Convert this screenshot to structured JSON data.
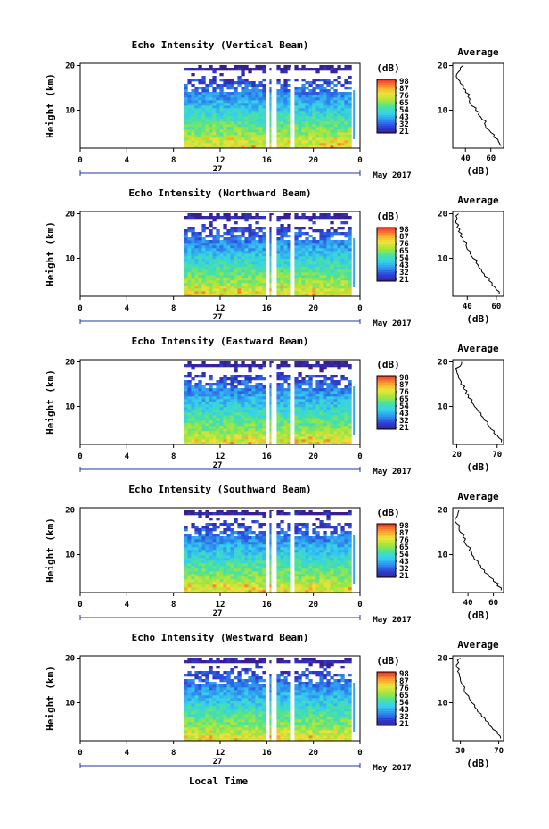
{
  "chart_data": [
    {
      "type": "heatmap",
      "title": "Echo Intensity (Vertical Beam)",
      "ylabel": "Height (km)",
      "xticks": [
        "0",
        "4",
        "8",
        "12",
        "16",
        "20",
        "0"
      ],
      "xrange_hours": [
        0,
        24
      ],
      "yticks": [
        "10",
        "20"
      ],
      "ylim": [
        1.5,
        20.5
      ],
      "date_mark": "27",
      "month_label": "May 2017",
      "colorbar": {
        "unit": "(dB)",
        "labels": [
          "98",
          "87",
          "76",
          "65",
          "54",
          "43",
          "32",
          "21"
        ]
      },
      "data_start_hour": 8.9,
      "data_end_hour": 23.0,
      "gaps_hours": [
        [
          15.9,
          16.1
        ],
        [
          16.4,
          16.6
        ],
        [
          18.0,
          18.2
        ]
      ],
      "profile": {
        "title": "Average",
        "xticks": [
          "40",
          "60"
        ],
        "xlim": [
          30,
          70
        ],
        "xlabel": "(dB)",
        "yticks": [
          "10",
          "20"
        ],
        "heights": [
          2,
          3,
          4,
          5,
          6,
          7,
          8,
          9,
          10,
          11,
          12,
          13,
          14,
          15,
          16,
          17,
          18,
          19,
          20
        ],
        "values": [
          68,
          66,
          62,
          60,
          56,
          55,
          53,
          50,
          48,
          45,
          43,
          42,
          40,
          38,
          36,
          34,
          33,
          36,
          38
        ]
      }
    },
    {
      "type": "heatmap",
      "title": "Echo Intensity (Northward Beam)",
      "ylabel": "Height (km)",
      "xticks": [
        "0",
        "4",
        "8",
        "12",
        "16",
        "20",
        "0"
      ],
      "xrange_hours": [
        0,
        24
      ],
      "yticks": [
        "10",
        "20"
      ],
      "ylim": [
        1.5,
        20.5
      ],
      "date_mark": "27",
      "month_label": "May 2017",
      "colorbar": {
        "unit": "(dB)",
        "labels": [
          "98",
          "87",
          "76",
          "65",
          "54",
          "43",
          "32",
          "21"
        ]
      },
      "data_start_hour": 8.9,
      "data_end_hour": 23.0,
      "gaps_hours": [
        [
          15.9,
          16.1
        ],
        [
          16.4,
          16.6
        ],
        [
          18.0,
          18.2
        ]
      ],
      "profile": {
        "title": "Average",
        "xticks": [
          "40",
          "60"
        ],
        "xlim": [
          30,
          65
        ],
        "xlabel": "(dB)",
        "yticks": [
          "10",
          "20"
        ],
        "heights": [
          2,
          3,
          4,
          5,
          6,
          7,
          8,
          9,
          10,
          11,
          12,
          13,
          14,
          15,
          16,
          17,
          18,
          19,
          20
        ],
        "values": [
          62,
          60,
          57,
          55,
          52,
          50,
          48,
          46,
          44,
          42,
          40,
          39,
          37,
          35,
          34,
          33,
          32,
          33,
          34
        ]
      }
    },
    {
      "type": "heatmap",
      "title": "Echo Intensity (Eastward Beam)",
      "ylabel": "Height (km)",
      "xticks": [
        "0",
        "4",
        "8",
        "12",
        "16",
        "20",
        "0"
      ],
      "xrange_hours": [
        0,
        24
      ],
      "yticks": [
        "10",
        "20"
      ],
      "ylim": [
        1.5,
        20.5
      ],
      "date_mark": "27",
      "month_label": "May 2017",
      "colorbar": {
        "unit": "(dB)",
        "labels": [
          "98",
          "87",
          "76",
          "65",
          "54",
          "43",
          "32",
          "21"
        ]
      },
      "data_start_hour": 8.9,
      "data_end_hour": 23.0,
      "gaps_hours": [
        [
          15.9,
          16.1
        ],
        [
          16.4,
          16.6
        ],
        [
          18.0,
          18.2
        ]
      ],
      "profile": {
        "title": "Average",
        "xticks": [
          "20",
          "70"
        ],
        "xlim": [
          15,
          78
        ],
        "xlabel": "(dB)",
        "yticks": [
          "10",
          "20"
        ],
        "heights": [
          2,
          3,
          4,
          5,
          6,
          7,
          8,
          9,
          10,
          11,
          12,
          13,
          14,
          15,
          16,
          17,
          18,
          19,
          20
        ],
        "values": [
          75,
          72,
          66,
          62,
          58,
          54,
          50,
          46,
          42,
          38,
          34,
          31,
          28,
          25,
          24,
          22,
          20,
          24,
          26
        ]
      }
    },
    {
      "type": "heatmap",
      "title": "Echo Intensity (Southward Beam)",
      "ylabel": "Height (km)",
      "xticks": [
        "0",
        "4",
        "8",
        "12",
        "16",
        "20",
        "0"
      ],
      "xrange_hours": [
        0,
        24
      ],
      "yticks": [
        "10",
        "20"
      ],
      "ylim": [
        1.5,
        20.5
      ],
      "date_mark": "27",
      "month_label": "May 2017",
      "colorbar": {
        "unit": "(dB)",
        "labels": [
          "98",
          "87",
          "76",
          "65",
          "54",
          "43",
          "32",
          "21"
        ]
      },
      "data_start_hour": 8.9,
      "data_end_hour": 23.0,
      "gaps_hours": [
        [
          15.9,
          16.1
        ],
        [
          16.4,
          16.6
        ],
        [
          18.0,
          18.2
        ]
      ],
      "profile": {
        "title": "Average",
        "xticks": [
          "40",
          "60"
        ],
        "xlim": [
          28,
          68
        ],
        "xlabel": "(dB)",
        "yticks": [
          "10",
          "20"
        ],
        "heights": [
          2,
          3,
          4,
          5,
          6,
          7,
          8,
          9,
          10,
          11,
          12,
          13,
          14,
          15,
          16,
          17,
          18,
          19,
          20
        ],
        "values": [
          66,
          63,
          60,
          57,
          53,
          50,
          48,
          45,
          43,
          41,
          39,
          37,
          36,
          34,
          33,
          31,
          30,
          32,
          33
        ]
      }
    },
    {
      "type": "heatmap",
      "title": "Echo Intensity (Westward Beam)",
      "ylabel": "Height (km)",
      "xticks": [
        "0",
        "4",
        "8",
        "12",
        "16",
        "20",
        "0"
      ],
      "xrange_hours": [
        0,
        24
      ],
      "yticks": [
        "10",
        "20"
      ],
      "ylim": [
        1.5,
        20.5
      ],
      "date_mark": "27",
      "month_label": "May 2017",
      "colorbar": {
        "unit": "(dB)",
        "labels": [
          "98",
          "87",
          "76",
          "65",
          "54",
          "43",
          "32",
          "21"
        ]
      },
      "data_start_hour": 8.9,
      "data_end_hour": 23.0,
      "gaps_hours": [
        [
          15.9,
          16.1
        ],
        [
          16.4,
          16.6
        ],
        [
          18.0,
          18.2
        ]
      ],
      "profile": {
        "title": "Average",
        "xticks": [
          "30",
          "70"
        ],
        "xlim": [
          22,
          75
        ],
        "xlabel": "(dB)",
        "yticks": [
          "10",
          "20"
        ],
        "heights": [
          2,
          3,
          4,
          5,
          6,
          7,
          8,
          9,
          10,
          11,
          12,
          13,
          14,
          15,
          16,
          17,
          18,
          19,
          20
        ],
        "values": [
          72,
          69,
          64,
          60,
          56,
          52,
          48,
          45,
          42,
          39,
          36,
          34,
          32,
          30,
          29,
          27,
          26,
          28,
          30
        ]
      }
    }
  ],
  "footer": {
    "xlabel": "Local Time"
  },
  "colormap": [
    "#3a1e8c",
    "#2b3fd6",
    "#2f8ff0",
    "#35d0ee",
    "#4be39a",
    "#a8e63a",
    "#f2e23a",
    "#f8a22e",
    "#ee3d2a"
  ],
  "colors": {
    "axis": "#000000",
    "date_axis": "#1e3aa0",
    "background": "#ffffff"
  }
}
